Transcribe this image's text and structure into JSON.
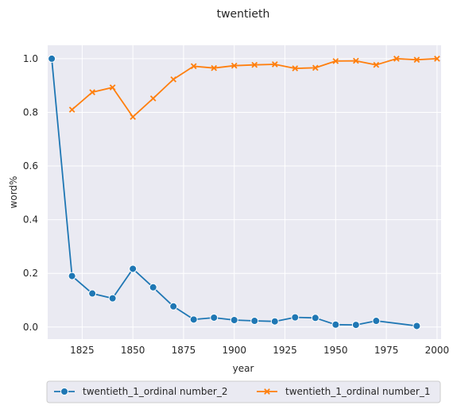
{
  "chart_data": {
    "type": "line",
    "title": "twentieth",
    "xlabel": "year",
    "ylabel": "word%",
    "xlim": [
      1808,
      2002
    ],
    "ylim": [
      -0.045,
      1.05
    ],
    "x_ticks": [
      1825,
      1850,
      1875,
      1900,
      1925,
      1950,
      1975,
      2000
    ],
    "y_ticks": [
      0.0,
      0.2,
      0.4,
      0.6,
      0.8,
      1.0
    ],
    "x_tick_labels": [
      "1825",
      "1850",
      "1875",
      "1900",
      "1925",
      "1950",
      "1975",
      "2000"
    ],
    "y_tick_labels": [
      "0.0",
      "0.2",
      "0.4",
      "0.6",
      "0.8",
      "1.0"
    ],
    "grid": true,
    "legend_position": "bottom-center",
    "series": [
      {
        "name": "twentieth_1_ordinal number_2",
        "color": "#1f77b4",
        "marker": "circle",
        "x": [
          1810,
          1820,
          1830,
          1840,
          1850,
          1860,
          1870,
          1880,
          1890,
          1900,
          1910,
          1920,
          1930,
          1940,
          1950,
          1960,
          1970,
          1990
        ],
        "y": [
          1.0,
          0.19,
          0.125,
          0.107,
          0.217,
          0.148,
          0.077,
          0.028,
          0.035,
          0.026,
          0.023,
          0.021,
          0.036,
          0.034,
          0.009,
          0.008,
          0.023,
          0.004
        ]
      },
      {
        "name": "twentieth_1_ordinal number_1",
        "color": "#ff7f0e",
        "marker": "x",
        "x": [
          1820,
          1830,
          1840,
          1850,
          1860,
          1870,
          1880,
          1890,
          1900,
          1910,
          1920,
          1930,
          1940,
          1950,
          1960,
          1970,
          1980,
          1990,
          2000
        ],
        "y": [
          0.81,
          0.875,
          0.893,
          0.783,
          0.852,
          0.923,
          0.972,
          0.965,
          0.974,
          0.977,
          0.979,
          0.964,
          0.966,
          0.991,
          0.992,
          0.977,
          1.0,
          0.996,
          1.0
        ]
      }
    ]
  }
}
